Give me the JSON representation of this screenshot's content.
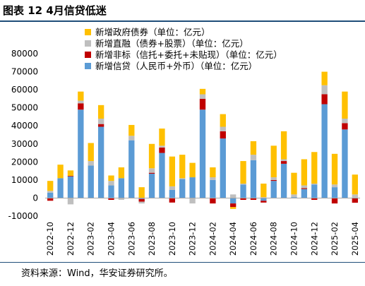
{
  "title": "图表 12  4月信贷低迷",
  "source": "资料来源：Wind，华安证券研究所。",
  "chart_data": {
    "type": "bar",
    "stacked": true,
    "title": "图表 12  4月信贷低迷",
    "xlabel": "",
    "ylabel": "",
    "ylim": [
      -10000,
      80000
    ],
    "yticks": [
      -10000,
      0,
      10000,
      20000,
      30000,
      40000,
      50000,
      60000,
      70000,
      80000
    ],
    "legend_position": "top-left",
    "grid": false,
    "categories": [
      "2022-10",
      "2022-11",
      "2022-12",
      "2023-01",
      "2023-02",
      "2023-03",
      "2023-04",
      "2023-05",
      "2023-06",
      "2023-07",
      "2023-08",
      "2023-09",
      "2023-10",
      "2023-11",
      "2023-12",
      "2024-01",
      "2024-02",
      "2024-03",
      "2024-04",
      "2024-05",
      "2024-06",
      "2024-07",
      "2024-08",
      "2024-09",
      "2024-10",
      "2024-11",
      "2024-12",
      "2025-01",
      "2025-02",
      "2025-03",
      "2025-04"
    ],
    "tick_labels": [
      "2022-10",
      "",
      "2022-12",
      "",
      "2023-02",
      "",
      "2023-04",
      "",
      "2023-06",
      "",
      "2023-08",
      "",
      "2023-10",
      "",
      "2023-12",
      "",
      "2024-02",
      "",
      "2024-04",
      "",
      "2024-06",
      "",
      "2024-08",
      "",
      "2024-10",
      "",
      "2024-12",
      "",
      "2025-02",
      "",
      "2025-04"
    ],
    "series": [
      {
        "name": "新增信贷（人民币+外币）（单位：亿元）",
        "color": "#5b9bd5",
        "values": [
          3000,
          11000,
          12000,
          49000,
          18000,
          39500,
          7000,
          11000,
          32000,
          -500,
          13500,
          25000,
          4500,
          10500,
          11500,
          49000,
          10000,
          33000,
          -3000,
          7500,
          21000,
          -1500,
          9500,
          19000,
          500,
          5000,
          7500,
          52000,
          6000,
          38000,
          -100
        ]
      },
      {
        "name": "新增非标（信托+委托+未贴现）（单位：亿元）",
        "color": "#c00000",
        "values": [
          -1500,
          0,
          300,
          3500,
          0,
          1500,
          -1000,
          0,
          0,
          -1500,
          500,
          3000,
          -2500,
          0,
          0,
          6000,
          -3000,
          4000,
          -2000,
          -1000,
          -1000,
          -1000,
          500,
          1500,
          0,
          500,
          -1000,
          5500,
          -3000,
          3500,
          -2500
        ]
      },
      {
        "name": "新增直融（债券+股票）（单位：亿元）",
        "color": "#bfbfbf",
        "values": [
          1000,
          0,
          -3500,
          1500,
          2500,
          3000,
          2500,
          -1000,
          2500,
          -1000,
          2500,
          1000,
          2000,
          500,
          -3000,
          2500,
          1500,
          2500,
          2000,
          500,
          3000,
          500,
          1500,
          1000,
          1500,
          1500,
          500,
          5000,
          1500,
          2500,
          2000
        ]
      },
      {
        "name": "新增政府债券（单位：亿元）",
        "color": "#ffc000",
        "values": [
          5500,
          7500,
          3000,
          5000,
          10000,
          7500,
          3000,
          6000,
          6000,
          6000,
          13500,
          9500,
          16500,
          13000,
          8000,
          3000,
          5500,
          7000,
          -1000,
          12500,
          7500,
          7500,
          17500,
          15500,
          12000,
          14500,
          17500,
          7500,
          17000,
          15000,
          11000
        ]
      }
    ],
    "legend_order": [
      "新增政府债券（单位：亿元）",
      "新增直融（债券+股票）（单位：亿元）",
      "新增非标（信托+委托+未贴现）（单位：亿元）",
      "新增信贷（人民币+外币）（单位：亿元）"
    ]
  }
}
